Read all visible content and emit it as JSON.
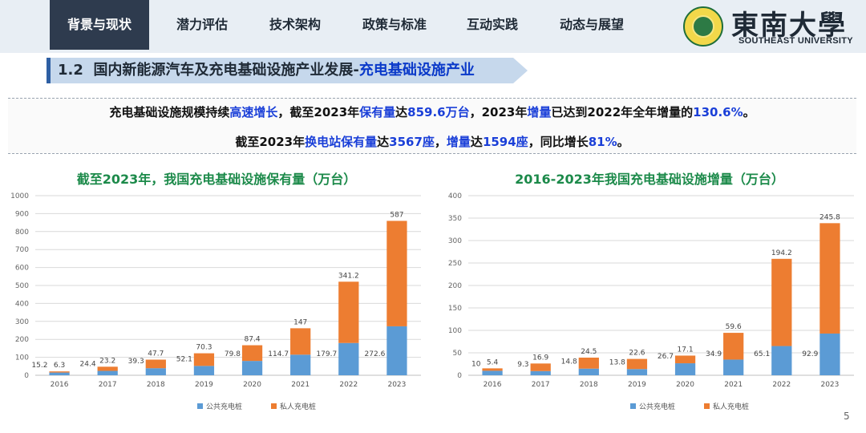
{
  "nav": {
    "tabs": [
      "背景与现状",
      "潜力评估",
      "技术架构",
      "政策与标准",
      "互动实践",
      "动态与展望"
    ],
    "active_index": 0
  },
  "university": {
    "name_cn": "東南大學",
    "name_en": "SOUTHEAST UNIVERSITY",
    "seal_color": "#2d7a45"
  },
  "section": {
    "number": "1.2",
    "title": "国内新能源汽车及充电基础设施产业发展-",
    "highlight": "充电基础设施产业"
  },
  "summary": {
    "line1": [
      {
        "t": "充电基础设施规模持续",
        "b": false
      },
      {
        "t": "高速增长",
        "b": true
      },
      {
        "t": "，截至2023年",
        "b": false
      },
      {
        "t": "保有量",
        "b": true
      },
      {
        "t": "达",
        "b": false
      },
      {
        "t": "859.6万台",
        "b": true
      },
      {
        "t": "，2023年",
        "b": false
      },
      {
        "t": "增量",
        "b": true
      },
      {
        "t": "已达到2022年全年增量的",
        "b": false
      },
      {
        "t": "130.6%",
        "b": true
      },
      {
        "t": "。",
        "b": false
      }
    ],
    "line2": [
      {
        "t": "截至2023年",
        "b": false
      },
      {
        "t": "换电站保有量",
        "b": true
      },
      {
        "t": "达",
        "b": false
      },
      {
        "t": "3567座",
        "b": true
      },
      {
        "t": "，",
        "b": false
      },
      {
        "t": "增量",
        "b": true
      },
      {
        "t": "达",
        "b": false
      },
      {
        "t": "1594座",
        "b": true
      },
      {
        "t": "，同比增长",
        "b": false
      },
      {
        "t": "81%",
        "b": true
      },
      {
        "t": "。",
        "b": false
      }
    ]
  },
  "colors": {
    "public": "#5b9bd5",
    "private": "#ed7d31",
    "title_green": "#1c8a4a",
    "highlight_blue": "#1a3fd8"
  },
  "chart_data": [
    {
      "type": "bar",
      "stacked": true,
      "title": "截至2023年，我国充电基础设施保有量（万台）",
      "categories": [
        "2016",
        "2017",
        "2018",
        "2019",
        "2020",
        "2021",
        "2022",
        "2023"
      ],
      "series": [
        {
          "name": "公共充电桩",
          "values": [
            15.2,
            24.4,
            39.3,
            52.1,
            79.8,
            114.7,
            179.7,
            272.6
          ],
          "labels": [
            "15.2",
            "24.4",
            "39.3",
            "52.1",
            "79.8",
            "114.7",
            "179.7",
            "272.6"
          ]
        },
        {
          "name": "私人充电桩",
          "values": [
            6.3,
            23.2,
            47.7,
            70.3,
            87.4,
            147,
            341.2,
            587
          ],
          "labels": [
            "6.3",
            "23.2",
            "47.7",
            "70.3",
            "87.4",
            "147",
            "341.2",
            "587"
          ]
        }
      ],
      "ylim": [
        0,
        1000
      ],
      "yticks": [
        "0",
        "100",
        "200",
        "300",
        "400",
        "500",
        "600",
        "700",
        "800",
        "900",
        "1000"
      ],
      "grid": true,
      "legend": "bottom"
    },
    {
      "type": "bar",
      "stacked": true,
      "title": "2016-2023年我国充电基础设施增量（万台）",
      "categories": [
        "2016",
        "2017",
        "2018",
        "2019",
        "2020",
        "2021",
        "2022",
        "2023"
      ],
      "series": [
        {
          "name": "公共充电桩",
          "values": [
            10,
            9.3,
            14.8,
            13.8,
            26.7,
            34.9,
            65.1,
            92.9
          ],
          "labels": [
            "10",
            "9.3",
            "14.8",
            "13.8",
            "26.7",
            "34.9",
            "65.1",
            "92.9"
          ]
        },
        {
          "name": "私人充电桩",
          "values": [
            5.4,
            16.9,
            24.5,
            22.6,
            17.1,
            59.6,
            194.2,
            245.8
          ],
          "labels": [
            "5.4",
            "16.9",
            "24.5",
            "22.6",
            "17.1",
            "59.6",
            "194.2",
            "245.8"
          ]
        }
      ],
      "ylim": [
        0,
        400
      ],
      "yticks": [
        "0",
        "50",
        "100",
        "150",
        "200",
        "250",
        "300",
        "350",
        "400"
      ],
      "grid": true,
      "legend": "bottom"
    }
  ],
  "page_number": "5"
}
